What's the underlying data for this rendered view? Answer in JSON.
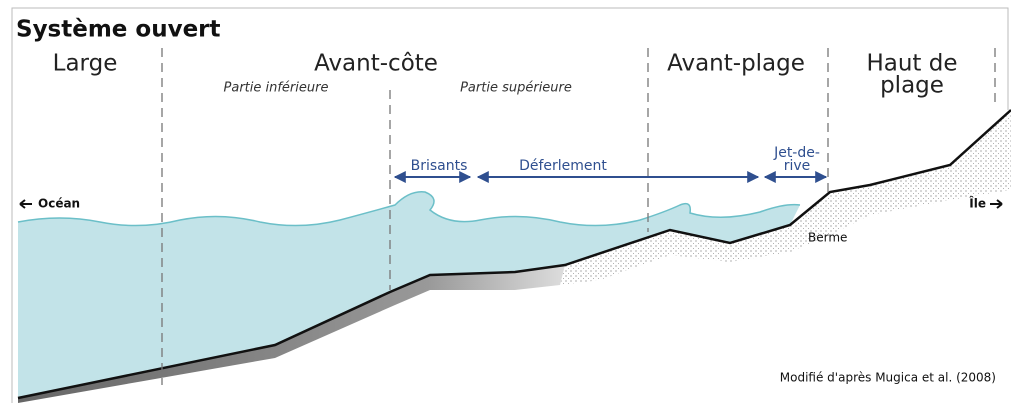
{
  "title": "Système ouvert",
  "zones": [
    {
      "lines": [
        "Large"
      ]
    },
    {
      "lines": [
        "Avant-côte"
      ]
    },
    {
      "lines": [
        "Avant-plage"
      ]
    },
    {
      "lines": [
        "Haut de",
        "plage"
      ]
    }
  ],
  "subzones": [
    "Partie inférieure",
    "Partie supérieure"
  ],
  "processes": [
    {
      "lines": [
        "Brisants"
      ]
    },
    {
      "lines": [
        "Déferlement"
      ]
    },
    {
      "lines": [
        "Jet-de-",
        "rive"
      ]
    }
  ],
  "directions": {
    "left": "Océan",
    "right": "Île"
  },
  "feature": "Berme",
  "credit": "Modifié d'après Mugica et al. (2008)"
}
